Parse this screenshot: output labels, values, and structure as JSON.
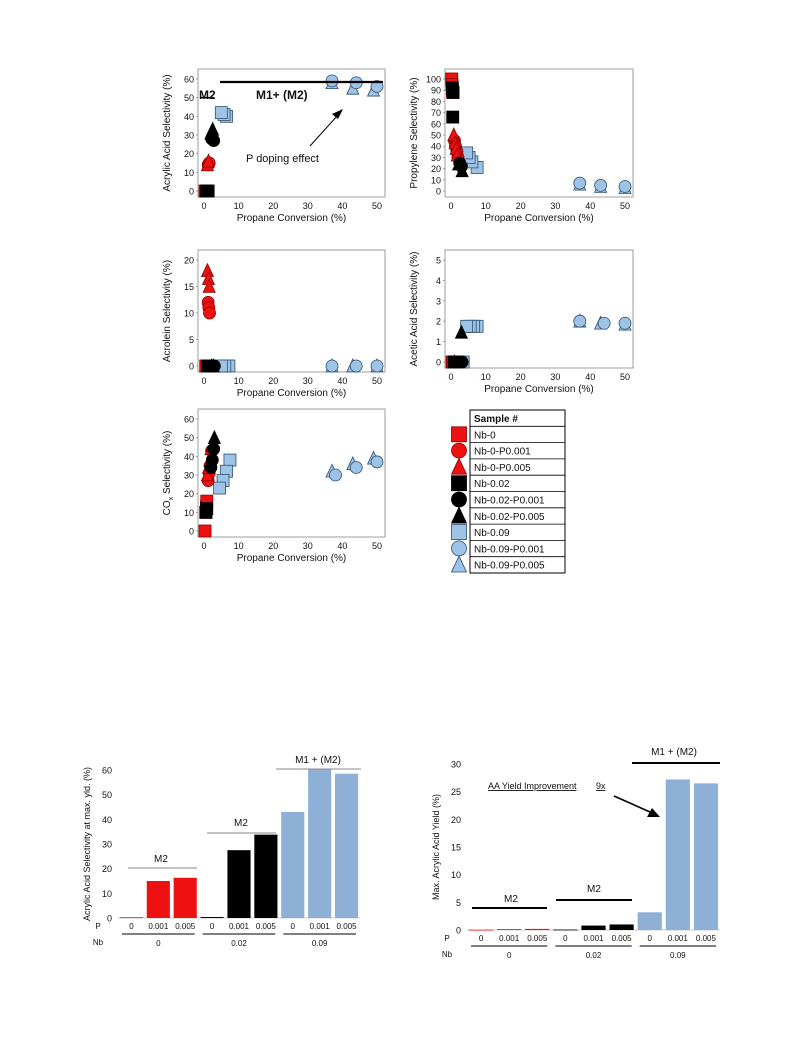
{
  "colors": {
    "red": "#ee1111",
    "black": "#000000",
    "blue": "#9dc3e6",
    "bar_blue": "#8eb0d6"
  },
  "samples": [
    {
      "id": "Nb-0",
      "color": "red",
      "shape": "square"
    },
    {
      "id": "Nb-0-P0.001",
      "color": "red",
      "shape": "circle"
    },
    {
      "id": "Nb-0-P0.005",
      "color": "red",
      "shape": "triangle"
    },
    {
      "id": "Nb-0.02",
      "color": "black",
      "shape": "square"
    },
    {
      "id": "Nb-0.02-P0.001",
      "color": "black",
      "shape": "circle"
    },
    {
      "id": "Nb-0.02-P0.005",
      "color": "black",
      "shape": "triangle"
    },
    {
      "id": "Nb-0.09",
      "color": "blue",
      "shape": "square"
    },
    {
      "id": "Nb-0.09-P0.001",
      "color": "blue",
      "shape": "circle"
    },
    {
      "id": "Nb-0.09-P0.005",
      "color": "blue",
      "shape": "triangle"
    }
  ],
  "legend": {
    "header": "Sample #"
  },
  "chart_data": [
    {
      "type": "scatter",
      "xlabel": "Propane Conversion (%)",
      "ylabel": "Acrylic Acid Selectivity (%)",
      "xlim": [
        0,
        50
      ],
      "ylim": [
        0,
        60
      ],
      "xticks": [
        0,
        10,
        20,
        30,
        40,
        50
      ],
      "yticks": [
        0,
        10,
        20,
        30,
        40,
        50,
        60
      ],
      "annotations": {
        "m2": "M2",
        "m1": "M1+ (M2)",
        "arrow": "P doping effect"
      },
      "points": [
        {
          "s": 0,
          "x": 0.3,
          "y": 0
        },
        {
          "s": 0,
          "x": 0.6,
          "y": 0
        },
        {
          "s": 1,
          "x": 1.2,
          "y": 14
        },
        {
          "s": 1,
          "x": 1.5,
          "y": 15
        },
        {
          "s": 2,
          "x": 1.0,
          "y": 14
        },
        {
          "s": 2,
          "x": 1.3,
          "y": 16
        },
        {
          "s": 3,
          "x": 0.8,
          "y": 0
        },
        {
          "s": 3,
          "x": 1.2,
          "y": 0
        },
        {
          "s": 4,
          "x": 2.2,
          "y": 28
        },
        {
          "s": 4,
          "x": 2.8,
          "y": 27
        },
        {
          "s": 5,
          "x": 2.0,
          "y": 31
        },
        {
          "s": 5,
          "x": 2.5,
          "y": 33
        },
        {
          "s": 6,
          "x": 5.0,
          "y": 42
        },
        {
          "s": 6,
          "x": 5.8,
          "y": 41
        },
        {
          "s": 6,
          "x": 6.5,
          "y": 40
        },
        {
          "s": 7,
          "x": 37,
          "y": 59
        },
        {
          "s": 7,
          "x": 44,
          "y": 58
        },
        {
          "s": 7,
          "x": 50,
          "y": 56
        },
        {
          "s": 8,
          "x": 37,
          "y": 58
        },
        {
          "s": 8,
          "x": 43,
          "y": 55
        },
        {
          "s": 8,
          "x": 49,
          "y": 54
        }
      ]
    },
    {
      "type": "scatter",
      "xlabel": "Propane Conversion (%)",
      "ylabel": "Propylene Selectivity (%)",
      "xlim": [
        0,
        50
      ],
      "ylim": [
        0,
        100
      ],
      "xticks": [
        0,
        10,
        20,
        30,
        40,
        50
      ],
      "yticks": [
        0,
        10,
        20,
        30,
        40,
        50,
        60,
        70,
        80,
        90,
        100
      ],
      "points": [
        {
          "s": 0,
          "x": 0.2,
          "y": 100
        },
        {
          "s": 0,
          "x": 0.3,
          "y": 95
        },
        {
          "s": 0,
          "x": 0.4,
          "y": 90
        },
        {
          "s": 0,
          "x": 0.5,
          "y": 88
        },
        {
          "s": 1,
          "x": 1.0,
          "y": 45
        },
        {
          "s": 1,
          "x": 1.3,
          "y": 40
        },
        {
          "s": 1,
          "x": 1.7,
          "y": 35
        },
        {
          "s": 1,
          "x": 2.0,
          "y": 30
        },
        {
          "s": 2,
          "x": 0.8,
          "y": 50
        },
        {
          "s": 2,
          "x": 1.2,
          "y": 43
        },
        {
          "s": 2,
          "x": 1.5,
          "y": 38
        },
        {
          "s": 2,
          "x": 1.8,
          "y": 32
        },
        {
          "s": 3,
          "x": 0.4,
          "y": 92
        },
        {
          "s": 3,
          "x": 0.6,
          "y": 88
        },
        {
          "s": 3,
          "x": 0.5,
          "y": 66
        },
        {
          "s": 4,
          "x": 2.5,
          "y": 25
        },
        {
          "s": 4,
          "x": 3.0,
          "y": 22
        },
        {
          "s": 5,
          "x": 2.2,
          "y": 24
        },
        {
          "s": 5,
          "x": 3.2,
          "y": 18
        },
        {
          "s": 6,
          "x": 4.5,
          "y": 34
        },
        {
          "s": 6,
          "x": 5.2,
          "y": 30
        },
        {
          "s": 6,
          "x": 6.0,
          "y": 26
        },
        {
          "s": 6,
          "x": 7.5,
          "y": 21
        },
        {
          "s": 7,
          "x": 37,
          "y": 7
        },
        {
          "s": 7,
          "x": 43,
          "y": 5
        },
        {
          "s": 7,
          "x": 50,
          "y": 4
        },
        {
          "s": 8,
          "x": 37,
          "y": 6
        },
        {
          "s": 8,
          "x": 43,
          "y": 4
        },
        {
          "s": 8,
          "x": 50,
          "y": 3
        }
      ]
    },
    {
      "type": "scatter",
      "xlabel": "Propane Conversion (%)",
      "ylabel": "Acrolein Selectivity (%)",
      "xlim": [
        0,
        50
      ],
      "ylim": [
        0,
        20
      ],
      "xticks": [
        0,
        10,
        20,
        30,
        40,
        50
      ],
      "yticks": [
        0,
        5,
        10,
        15,
        20
      ],
      "points": [
        {
          "s": 0,
          "x": 0.5,
          "y": 0
        },
        {
          "s": 0,
          "x": 0.9,
          "y": 0
        },
        {
          "s": 1,
          "x": 1.2,
          "y": 12
        },
        {
          "s": 1,
          "x": 1.4,
          "y": 11
        },
        {
          "s": 1,
          "x": 1.6,
          "y": 10
        },
        {
          "s": 2,
          "x": 1.0,
          "y": 18
        },
        {
          "s": 2,
          "x": 1.3,
          "y": 16.5
        },
        {
          "s": 2,
          "x": 1.5,
          "y": 15
        },
        {
          "s": 3,
          "x": 1.2,
          "y": 0
        },
        {
          "s": 3,
          "x": 1.6,
          "y": 0
        },
        {
          "s": 4,
          "x": 2.5,
          "y": 0
        },
        {
          "s": 4,
          "x": 3.0,
          "y": 0
        },
        {
          "s": 5,
          "x": 2.2,
          "y": 0
        },
        {
          "s": 5,
          "x": 2.7,
          "y": 0
        },
        {
          "s": 6,
          "x": 5.0,
          "y": 0
        },
        {
          "s": 6,
          "x": 6.0,
          "y": 0
        },
        {
          "s": 6,
          "x": 7.2,
          "y": 0
        },
        {
          "s": 7,
          "x": 37,
          "y": 0
        },
        {
          "s": 7,
          "x": 44,
          "y": 0
        },
        {
          "s": 7,
          "x": 50,
          "y": 0
        },
        {
          "s": 8,
          "x": 37,
          "y": 0
        },
        {
          "s": 8,
          "x": 43,
          "y": 0
        },
        {
          "s": 8,
          "x": 50,
          "y": 0
        }
      ]
    },
    {
      "type": "scatter",
      "xlabel": "Propane Conversion (%)",
      "ylabel": "Acetic Acid Selectivity (%)",
      "xlim": [
        0,
        50
      ],
      "ylim": [
        0,
        5
      ],
      "xticks": [
        0,
        10,
        20,
        30,
        40,
        50
      ],
      "yticks": [
        0,
        1,
        2,
        3,
        4,
        5
      ],
      "points": [
        {
          "s": 0,
          "x": 0.3,
          "y": 0
        },
        {
          "s": 0,
          "x": 0.6,
          "y": 0
        },
        {
          "s": 1,
          "x": 1.2,
          "y": 0
        },
        {
          "s": 1,
          "x": 1.6,
          "y": 0
        },
        {
          "s": 2,
          "x": 1.0,
          "y": 0
        },
        {
          "s": 3,
          "x": 1.0,
          "y": 0
        },
        {
          "s": 3,
          "x": 1.4,
          "y": 0
        },
        {
          "s": 4,
          "x": 2.8,
          "y": 0
        },
        {
          "s": 4,
          "x": 3.2,
          "y": 0
        },
        {
          "s": 5,
          "x": 3.0,
          "y": 1.45
        },
        {
          "s": 6,
          "x": 3.5,
          "y": 0
        },
        {
          "s": 6,
          "x": 4.5,
          "y": 1.75
        },
        {
          "s": 6,
          "x": 5.5,
          "y": 1.75
        },
        {
          "s": 6,
          "x": 6.5,
          "y": 1.75
        },
        {
          "s": 6,
          "x": 7.5,
          "y": 1.75
        },
        {
          "s": 7,
          "x": 37,
          "y": 2.0
        },
        {
          "s": 7,
          "x": 44,
          "y": 1.9
        },
        {
          "s": 7,
          "x": 50,
          "y": 1.9
        },
        {
          "s": 8,
          "x": 37,
          "y": 2.0
        },
        {
          "s": 8,
          "x": 43,
          "y": 1.9
        },
        {
          "s": 8,
          "x": 50,
          "y": 1.85
        }
      ]
    },
    {
      "type": "scatter",
      "xlabel": "Propane Conversion (%)",
      "ylabel": "CO",
      "ylabel_sub": "x",
      "ylabel_rest": " Selectivity (%)",
      "xlim": [
        0,
        50
      ],
      "ylim": [
        0,
        60
      ],
      "xticks": [
        0,
        10,
        20,
        30,
        40,
        50
      ],
      "yticks": [
        0,
        10,
        20,
        30,
        40,
        50,
        60
      ],
      "points": [
        {
          "s": 0,
          "x": 0.3,
          "y": 0
        },
        {
          "s": 0,
          "x": 0.5,
          "y": 10
        },
        {
          "s": 0,
          "x": 0.7,
          "y": 13
        },
        {
          "s": 0,
          "x": 0.8,
          "y": 16
        },
        {
          "s": 1,
          "x": 1.2,
          "y": 27
        },
        {
          "s": 1,
          "x": 1.5,
          "y": 31
        },
        {
          "s": 1,
          "x": 1.8,
          "y": 35
        },
        {
          "s": 1,
          "x": 2.2,
          "y": 43
        },
        {
          "s": 2,
          "x": 1.0,
          "y": 30
        },
        {
          "s": 2,
          "x": 1.3,
          "y": 34
        },
        {
          "s": 2,
          "x": 1.7,
          "y": 38
        },
        {
          "s": 2,
          "x": 2.0,
          "y": 44
        },
        {
          "s": 3,
          "x": 0.6,
          "y": 10
        },
        {
          "s": 3,
          "x": 0.8,
          "y": 12
        },
        {
          "s": 4,
          "x": 2.0,
          "y": 34
        },
        {
          "s": 4,
          "x": 2.4,
          "y": 38
        },
        {
          "s": 4,
          "x": 2.8,
          "y": 44
        },
        {
          "s": 5,
          "x": 2.5,
          "y": 46
        },
        {
          "s": 5,
          "x": 3.0,
          "y": 50
        },
        {
          "s": 6,
          "x": 4.5,
          "y": 23
        },
        {
          "s": 6,
          "x": 5.5,
          "y": 27
        },
        {
          "s": 6,
          "x": 6.5,
          "y": 32
        },
        {
          "s": 6,
          "x": 7.5,
          "y": 38
        },
        {
          "s": 7,
          "x": 38,
          "y": 30
        },
        {
          "s": 7,
          "x": 44,
          "y": 34
        },
        {
          "s": 7,
          "x": 50,
          "y": 37
        },
        {
          "s": 8,
          "x": 37,
          "y": 32
        },
        {
          "s": 8,
          "x": 43,
          "y": 36
        },
        {
          "s": 8,
          "x": 49,
          "y": 39
        }
      ]
    },
    {
      "type": "bar",
      "ylabel": "Acrylic Acid Selectivity at max. yld. (%)",
      "ylim": [
        0,
        60
      ],
      "yticks": [
        0,
        10,
        20,
        30,
        40,
        50,
        60
      ],
      "p_label": "P",
      "nb_label": "Nb",
      "bars": [
        {
          "p": "0",
          "value": 0.3,
          "color": "red"
        },
        {
          "p": "0.001",
          "value": 15,
          "color": "red"
        },
        {
          "p": "0.005",
          "value": 16.3,
          "color": "red"
        },
        {
          "p": "0",
          "value": 0.4,
          "color": "black"
        },
        {
          "p": "0.001",
          "value": 27.5,
          "color": "black"
        },
        {
          "p": "0.005",
          "value": 33.8,
          "color": "black"
        },
        {
          "p": "0",
          "value": 43,
          "color": "bar_blue"
        },
        {
          "p": "0.001",
          "value": 60.5,
          "color": "bar_blue"
        },
        {
          "p": "0.005",
          "value": 58.5,
          "color": "bar_blue"
        }
      ],
      "nb_groups": [
        "0",
        "0.02",
        "0.09"
      ],
      "phase_labels": [
        "M2",
        "M2",
        "M1 + (M2)"
      ]
    },
    {
      "type": "bar",
      "ylabel": "Max. Acrylic Acid Yield (%)",
      "ylim": [
        0,
        30
      ],
      "yticks": [
        0,
        5,
        10,
        15,
        20,
        25,
        30
      ],
      "p_label": "P",
      "nb_label": "Nb",
      "annotation": {
        "text": "AA Yield Improvement",
        "factor": "9x"
      },
      "bars": [
        {
          "p": "0",
          "value": 0.05,
          "color": "red"
        },
        {
          "p": "0.001",
          "value": 0.15,
          "color": "red"
        },
        {
          "p": "0.005",
          "value": 0.2,
          "color": "red"
        },
        {
          "p": "0",
          "value": 0.08,
          "color": "black"
        },
        {
          "p": "0.001",
          "value": 0.8,
          "color": "black"
        },
        {
          "p": "0.005",
          "value": 1.0,
          "color": "black"
        },
        {
          "p": "0",
          "value": 3.2,
          "color": "bar_blue"
        },
        {
          "p": "0.001",
          "value": 27.2,
          "color": "bar_blue"
        },
        {
          "p": "0.005",
          "value": 26.5,
          "color": "bar_blue"
        }
      ],
      "nb_groups": [
        "0",
        "0.02",
        "0.09"
      ],
      "phase_labels": [
        "M2",
        "M2",
        "M1 + (M2)"
      ]
    }
  ]
}
